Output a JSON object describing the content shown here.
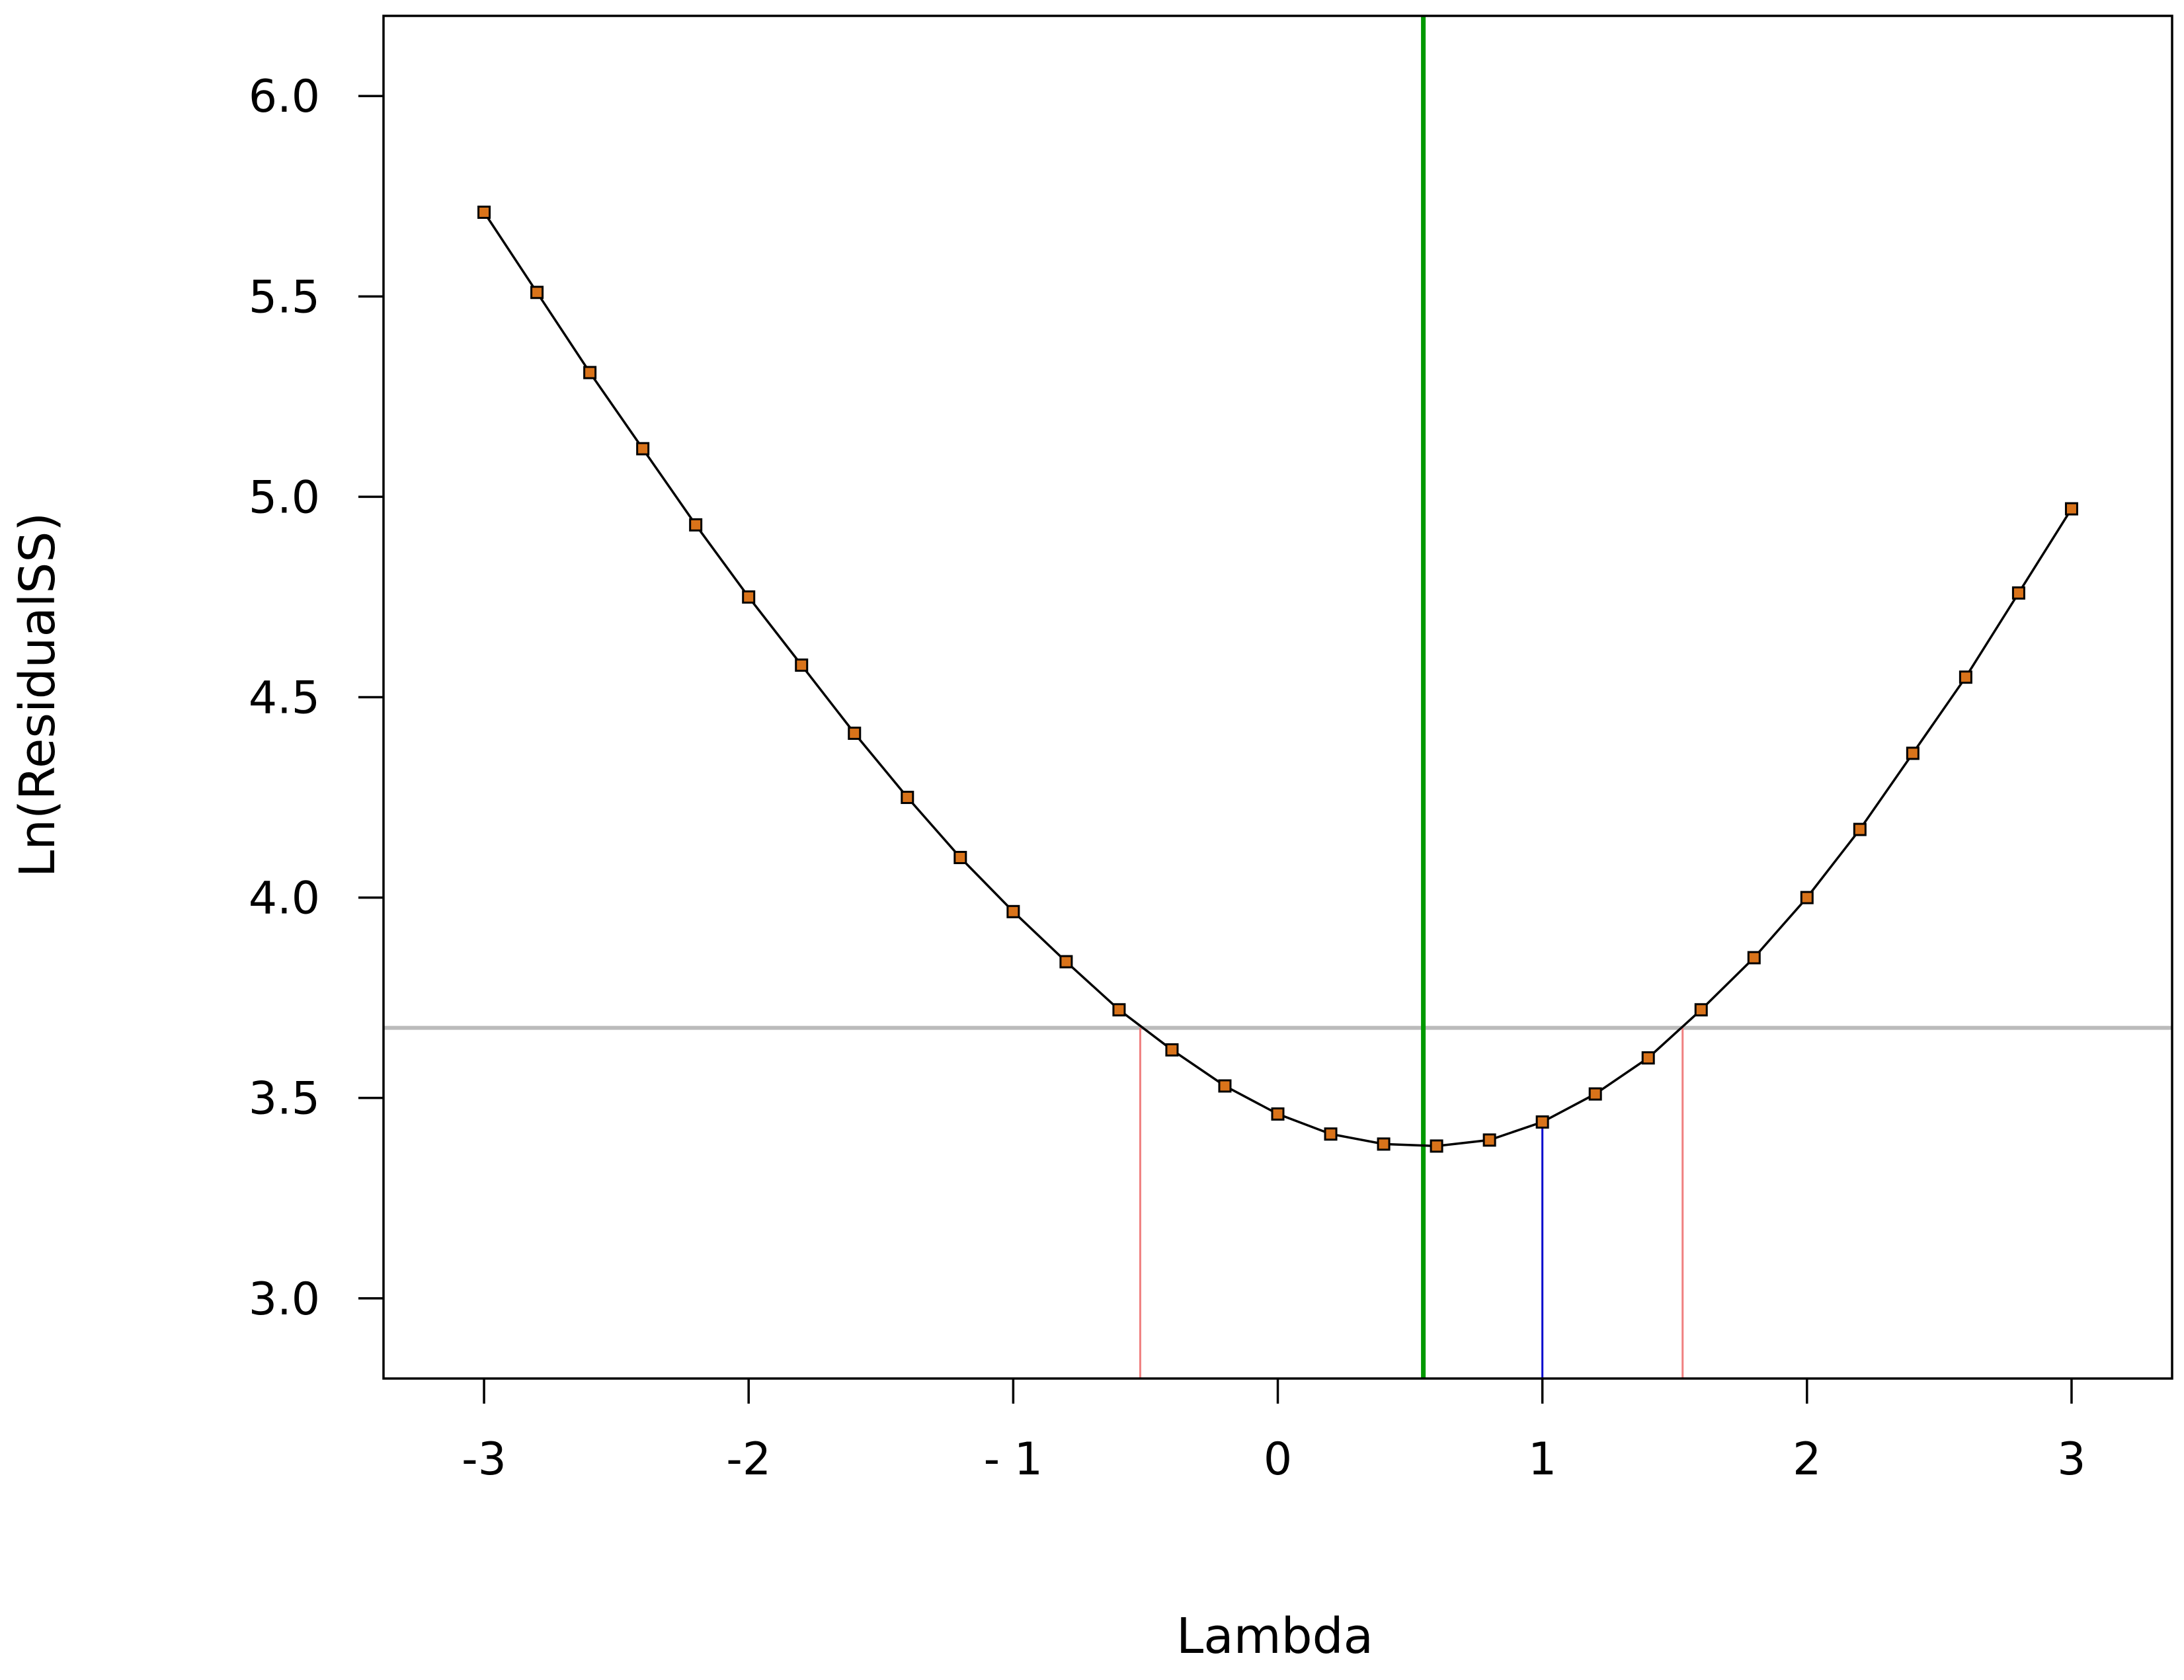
{
  "chart_data": {
    "type": "line",
    "title": "",
    "xlabel": "Lambda",
    "ylabel": "Ln(ResidualSS)",
    "xlim": [
      -3.38,
      3.38
    ],
    "ylim": [
      2.8,
      6.2
    ],
    "x_ticks": [
      -3,
      -2,
      -1,
      0,
      1,
      2,
      3
    ],
    "x_tick_labels": [
      "-3",
      "-2",
      "- 1",
      "0",
      "1",
      "2",
      "3"
    ],
    "y_ticks": [
      3.0,
      3.5,
      4.0,
      4.5,
      5.0,
      5.5,
      6.0
    ],
    "y_tick_labels": [
      "3.0",
      "3.5",
      "4.0",
      "4.5",
      "5.0",
      "5.5",
      "6.0"
    ],
    "grid": false,
    "series": [
      {
        "x": [
          -3.0,
          -2.8,
          -2.6,
          -2.4,
          -2.2,
          -2.0,
          -1.8,
          -1.6,
          -1.4,
          -1.2,
          -1.0,
          -0.8,
          -0.6,
          -0.4,
          -0.2,
          0.0,
          0.2,
          0.4,
          0.6,
          0.8,
          1.0,
          1.2,
          1.4,
          1.6,
          1.8,
          2.0,
          2.2,
          2.4,
          2.6,
          2.8,
          3.0
        ],
        "y": [
          5.71,
          5.51,
          5.31,
          5.12,
          4.93,
          4.75,
          4.58,
          4.41,
          4.25,
          4.1,
          3.965,
          3.84,
          3.72,
          3.62,
          3.53,
          3.46,
          3.41,
          3.385,
          3.38,
          3.395,
          3.44,
          3.51,
          3.6,
          3.72,
          3.85,
          4.0,
          4.17,
          4.36,
          4.55,
          4.76,
          4.97
        ],
        "marker_color": "#d9731a",
        "line_color": "#000000"
      }
    ],
    "reference_lines": {
      "optimal_lambda": {
        "x": 0.55,
        "color": "#009900"
      },
      "confidence_threshold": {
        "y": 3.675,
        "color": "#bbbbbb"
      },
      "ci_lower": {
        "x": -0.52,
        "color": "#f08080"
      },
      "ci_upper": {
        "x": 1.53,
        "color": "#f08080"
      },
      "lambda_one": {
        "x": 1.0,
        "color": "#0000cc"
      }
    }
  }
}
